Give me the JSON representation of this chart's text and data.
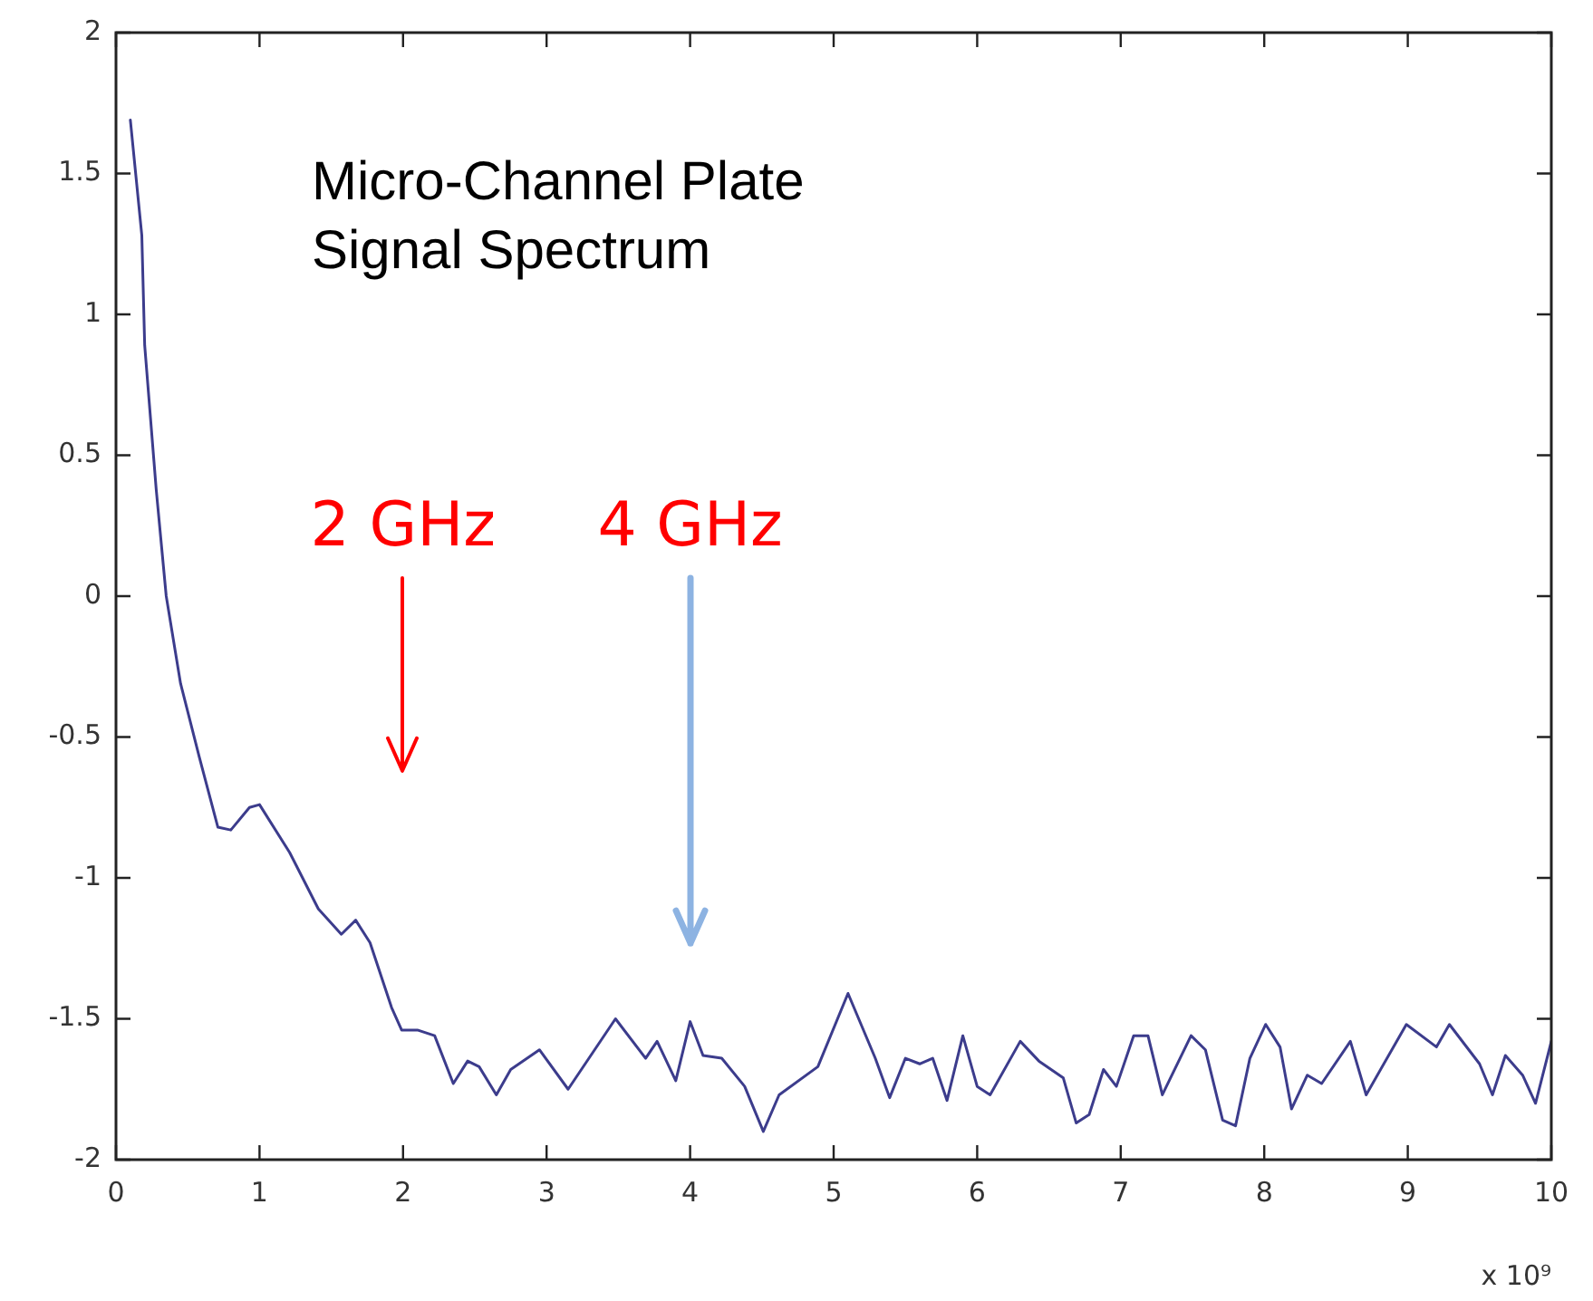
{
  "chart_data": {
    "type": "line",
    "title": "Micro-Channel Plate Signal Spectrum",
    "xlabel": "x 10⁹",
    "xlim": [
      0,
      10
    ],
    "xticks": [
      0,
      1,
      2,
      3,
      4,
      5,
      6,
      7,
      8,
      9,
      10
    ],
    "ylim": [
      -2,
      2
    ],
    "yticks": [
      -2,
      -1.5,
      -1,
      -0.5,
      0,
      0.5,
      1,
      1.5,
      2
    ],
    "grid": false,
    "legend": false,
    "marker": "none",
    "line_style": "solid",
    "annotations": [
      "2 GHz",
      "4 GHz"
    ],
    "series": [
      {
        "color": "#3c3c8c",
        "x": [
          0.1,
          0.18,
          0.2,
          0.28,
          0.35,
          0.45,
          0.58,
          0.71,
          0.8,
          0.93,
          1.0,
          1.21,
          1.41,
          1.57,
          1.67,
          1.77,
          1.92,
          1.99,
          2.1,
          2.22,
          2.35,
          2.45,
          2.53,
          2.65,
          2.75,
          2.95,
          3.15,
          3.48,
          3.69,
          3.77,
          3.9,
          4.0,
          4.09,
          4.22,
          4.38,
          4.51,
          4.62,
          4.89,
          5.1,
          5.29,
          5.39,
          5.5,
          5.6,
          5.69,
          5.79,
          5.9,
          6.0,
          6.09,
          6.3,
          6.43,
          6.6,
          6.69,
          6.78,
          6.88,
          6.97,
          7.09,
          7.19,
          7.29,
          7.49,
          7.59,
          7.71,
          7.8,
          7.9,
          8.01,
          8.11,
          8.19,
          8.3,
          8.4,
          8.6,
          8.71,
          8.99,
          9.2,
          9.29,
          9.5,
          9.59,
          9.68,
          9.8,
          9.89,
          10.0
        ],
        "values": [
          1.69,
          1.28,
          0.89,
          0.38,
          0.0,
          -0.31,
          -0.57,
          -0.82,
          -0.83,
          -0.75,
          -0.74,
          -0.91,
          -1.11,
          -1.2,
          -1.15,
          -1.23,
          -1.46,
          -1.54,
          -1.54,
          -1.56,
          -1.73,
          -1.65,
          -1.67,
          -1.77,
          -1.68,
          -1.61,
          -1.75,
          -1.5,
          -1.64,
          -1.58,
          -1.72,
          -1.51,
          -1.63,
          -1.64,
          -1.74,
          -1.9,
          -1.77,
          -1.67,
          -1.41,
          -1.64,
          -1.78,
          -1.64,
          -1.66,
          -1.64,
          -1.79,
          -1.56,
          -1.74,
          -1.77,
          -1.58,
          -1.65,
          -1.71,
          -1.87,
          -1.84,
          -1.68,
          -1.74,
          -1.56,
          -1.56,
          -1.77,
          -1.56,
          -1.61,
          -1.86,
          -1.88,
          -1.64,
          -1.52,
          -1.6,
          -1.82,
          -1.7,
          -1.73,
          -1.58,
          -1.77,
          -1.52,
          -1.6,
          -1.52,
          -1.66,
          -1.77,
          -1.63,
          -1.7,
          -1.8,
          -1.58
        ]
      }
    ]
  }
}
